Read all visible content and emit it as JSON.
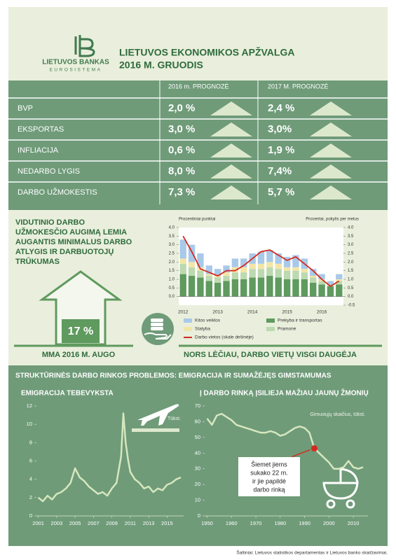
{
  "header": {
    "logo_name": "LIETUVOS BANKAS",
    "logo_sub": "EUROSISTEMA",
    "title": "LIETUVOS EKONOMIKOS APŽVALGA",
    "subtitle": "2016 M. GRUODIS"
  },
  "forecast_table": {
    "columns": [
      "2016 m. PROGNOZĖ",
      "2017 M. PROGNOZĖ"
    ],
    "rows": [
      [
        "BVP",
        "2,0 %",
        "2,4 %"
      ],
      [
        "EKSPORTAS",
        "3,0 %",
        "3,0%"
      ],
      [
        "INFLIACIJA",
        "0,6 %",
        "1,9 %"
      ],
      [
        "NEDARBO LYGIS",
        "8,0 %",
        "7,4%"
      ],
      [
        "DARBO UŽMOKESTIS",
        "7,3 %",
        "5,7 %"
      ]
    ]
  },
  "wages": {
    "headline": [
      "VIDUTINIO DARBO",
      "UŽMOKESČIO AUGIMĄ LEMIA",
      "AUGANTIS MINIMALUS DARBO",
      "ATLYGIS IR DARBUOTOJŲ",
      "TRŪKUMAS"
    ],
    "mma_value": "17 %",
    "mma_label": "MMA 2016 M. AUGO",
    "jobs_note": "NORS LĖČIAU, DARBO VIETŲ VISGI DAUGĖJA"
  },
  "labor_section": {
    "title": "STRUKTŪRINĖS DARBO RINKOS PROBLEMOS: EMIGRACIJA IR SUMAŽĖJĘS GIMSTAMUMAS"
  },
  "chart_data": [
    {
      "type": "bar",
      "stacked": true,
      "ylabel": "Procentiniai punktai",
      "y2label": "Procentai, pokytis per metus",
      "legend": "bottom",
      "categories": [
        "2012",
        null,
        null,
        null,
        "2013",
        null,
        null,
        null,
        "2014",
        null,
        null,
        null,
        "2015",
        null,
        null,
        null,
        "2016",
        null,
        null
      ],
      "series": [
        {
          "name": "Prekyba ir transportas",
          "color": "#5f9a5e",
          "values": [
            1.3,
            1.2,
            1.1,
            0.9,
            0.8,
            0.9,
            1.0,
            1.0,
            1.1,
            1.1,
            1.2,
            1.1,
            1.0,
            1.0,
            1.0,
            0.8,
            0.7,
            0.6,
            0.7
          ]
        },
        {
          "name": "Pramonė",
          "color": "#bcd9b0",
          "values": [
            0.6,
            0.5,
            0.4,
            0.3,
            0.3,
            0.3,
            0.4,
            0.4,
            0.5,
            0.5,
            0.5,
            0.5,
            0.5,
            0.5,
            0.4,
            0.3,
            0.2,
            0.1,
            0.2
          ]
        },
        {
          "name": "Statyba",
          "color": "#f2e6a6",
          "values": [
            0.3,
            0.3,
            0.2,
            0.1,
            0.1,
            0.2,
            0.3,
            0.3,
            0.3,
            0.3,
            0.3,
            0.3,
            0.2,
            0.2,
            0.2,
            0.1,
            0.1,
            0.0,
            0.1
          ]
        },
        {
          "name": "Kitos veiklos",
          "color": "#a9c9e9",
          "values": [
            1.1,
            1.0,
            0.8,
            0.5,
            0.4,
            0.4,
            0.5,
            0.5,
            0.6,
            0.7,
            0.7,
            0.6,
            0.6,
            0.7,
            0.6,
            0.4,
            0.3,
            0.2,
            0.3
          ]
        },
        {
          "name": "Darbo vietos (skale dešinėje)",
          "color": "#d42b20",
          "type": "line",
          "axis": "y2",
          "values": [
            3.5,
            2.6,
            1.6,
            1.4,
            1.2,
            1.5,
            1.5,
            1.8,
            2.2,
            2.6,
            2.7,
            2.4,
            2.1,
            2.3,
            1.9,
            1.5,
            1.0,
            0.6,
            0.9
          ]
        }
      ],
      "ylim": [
        -0.5,
        4.0
      ],
      "yticks": [
        {
          "value": 0,
          "label": "0.0"
        },
        {
          "value": 0.5,
          "label": "0.5"
        },
        {
          "value": 1,
          "label": "1.0"
        },
        {
          "value": 1.5,
          "label": "1.5"
        },
        {
          "value": 2,
          "label": "2.0"
        },
        {
          "value": 2.5,
          "label": "2.5"
        },
        {
          "value": 3,
          "label": "3.0"
        },
        {
          "value": 3.5,
          "label": "3.5"
        },
        {
          "value": 4,
          "label": "4.0"
        }
      ],
      "y2lim": [
        -0.5,
        4.0
      ],
      "y2ticks": [
        {
          "value": -0.5,
          "label": "-0.5"
        },
        {
          "value": 0,
          "label": "0.0"
        },
        {
          "value": 0.5,
          "label": "0.5"
        },
        {
          "value": 1,
          "label": "1.0"
        },
        {
          "value": 1.5,
          "label": "1.5"
        },
        {
          "value": 2,
          "label": "2.0"
        },
        {
          "value": 2.5,
          "label": "2.5"
        },
        {
          "value": 3,
          "label": "3.0"
        },
        {
          "value": 3.5,
          "label": "3.5"
        },
        {
          "value": 4,
          "label": "4.0"
        }
      ]
    },
    {
      "type": "line",
      "title": "EMIGRACIJA TEBEVYKSTA",
      "ylabel": "Tūkst.",
      "x": [
        2001,
        2001.5,
        2002,
        2002.5,
        2003,
        2003.5,
        2004,
        2004.5,
        2005,
        2005.5,
        2006,
        2006.5,
        2007,
        2007.5,
        2008,
        2008.5,
        2009,
        2009.5,
        2010,
        2010.25,
        2010.5,
        2010.75,
        2011,
        2011.5,
        2012,
        2012.5,
        2013,
        2013.5,
        2014,
        2014.5,
        2015,
        2015.5,
        2016,
        2016.5
      ],
      "series": [
        {
          "color": "#d6e7bd",
          "values": [
            2.0,
            1.6,
            2.2,
            1.8,
            2.4,
            2.6,
            3.0,
            3.6,
            5.2,
            4.2,
            3.8,
            3.2,
            2.8,
            2.4,
            2.6,
            2.2,
            3.0,
            3.6,
            6.5,
            11.2,
            8.0,
            6.2,
            4.8,
            4.0,
            3.6,
            3.0,
            3.2,
            2.6,
            3.0,
            2.8,
            3.4,
            3.6,
            4.0,
            4.2
          ]
        }
      ],
      "xlim": [
        2000.8,
        2016.8
      ],
      "xticks": [
        2001,
        2003,
        2005,
        2007,
        2009,
        2011,
        2013,
        2015
      ],
      "ylim": [
        0,
        12
      ],
      "yticks": [
        0,
        2,
        4,
        6,
        8,
        10,
        12
      ]
    },
    {
      "type": "line",
      "title": "Į DARBO RINKĄ ĮSILIEJA MAŽIAU JAUNŲ ŽMONIŲ",
      "ylabel": "Gimusiųjų skaičius, tūkst.",
      "x": [
        1950,
        1952,
        1954,
        1956,
        1958,
        1960,
        1962,
        1964,
        1966,
        1968,
        1970,
        1972,
        1974,
        1976,
        1978,
        1980,
        1982,
        1984,
        1986,
        1988,
        1990,
        1992,
        1994,
        1996,
        1998,
        2000,
        2002,
        2004,
        2006,
        2008,
        2010,
        2012,
        2014
      ],
      "series": [
        {
          "color": "#d6e7bd",
          "values": [
            62,
            58,
            64,
            65,
            63,
            61,
            58,
            57,
            56,
            55,
            54,
            53,
            53,
            54,
            53,
            51,
            52,
            54,
            56,
            57,
            56,
            53,
            43,
            40,
            37,
            34,
            30,
            30,
            31,
            35,
            31,
            30,
            31
          ]
        }
      ],
      "xlim": [
        1949,
        2016
      ],
      "xticks": [
        1950,
        1960,
        1970,
        1980,
        1990,
        2000,
        2010
      ],
      "ylim": [
        0,
        70
      ],
      "yticks": [
        0,
        10,
        20,
        30,
        40,
        50,
        60,
        70
      ],
      "highlight_x": 1994,
      "highlight_color": "#d42b20",
      "annotation": [
        "Šiemet jiems",
        "sukako 22 m.",
        "ir jie papildė",
        "darbo rinką"
      ]
    }
  ],
  "footer": {
    "source": "Šaltiniai: Lietuvos statistikos departamentas ir Lietuvos banko skaičiavimai."
  }
}
